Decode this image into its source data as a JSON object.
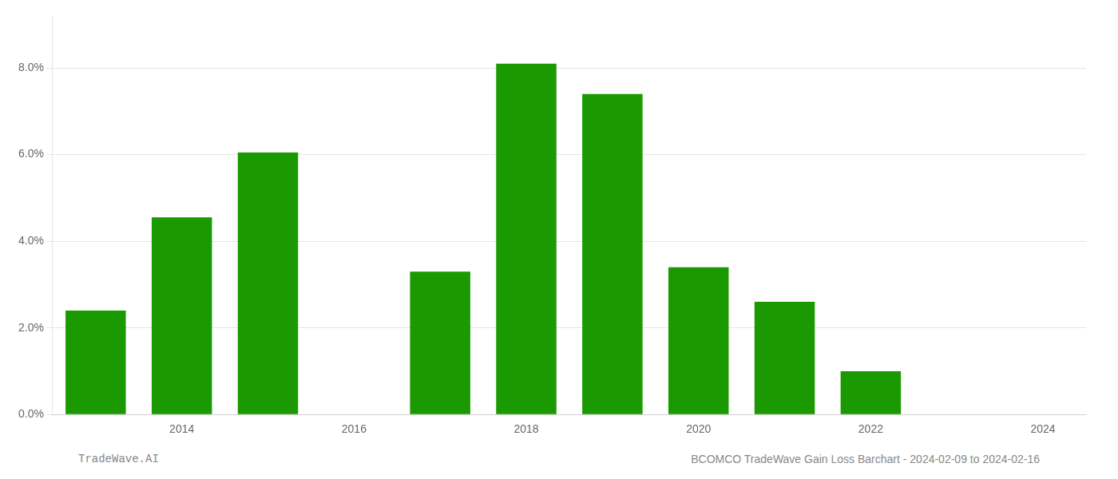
{
  "chart_data": {
    "type": "bar",
    "title": "BCOMCO TradeWave Gain Loss Barchart - 2024-02-09 to 2024-02-16",
    "subtitle": "TradeWave.AI",
    "x": [
      2013,
      2014,
      2015,
      2017,
      2018,
      2019,
      2020,
      2021,
      2022,
      2023
    ],
    "values": [
      0.024,
      0.0455,
      0.0605,
      0.033,
      0.081,
      0.074,
      0.034,
      0.026,
      0.01,
      0.0
    ],
    "color": "#1a9a00",
    "xlim": [
      2012.5,
      2024.5
    ],
    "xticks": [
      2014,
      2016,
      2018,
      2020,
      2022,
      2024
    ],
    "ylim": [
      0.0,
      0.092
    ],
    "yticks": [
      {
        "value": 0.0,
        "label": "0.0%"
      },
      {
        "value": 0.02,
        "label": "2.0%"
      },
      {
        "value": 0.04,
        "label": "4.0%"
      },
      {
        "value": 0.06,
        "label": "6.0%"
      },
      {
        "value": 0.08,
        "label": "8.0%"
      }
    ],
    "grid": "y"
  }
}
